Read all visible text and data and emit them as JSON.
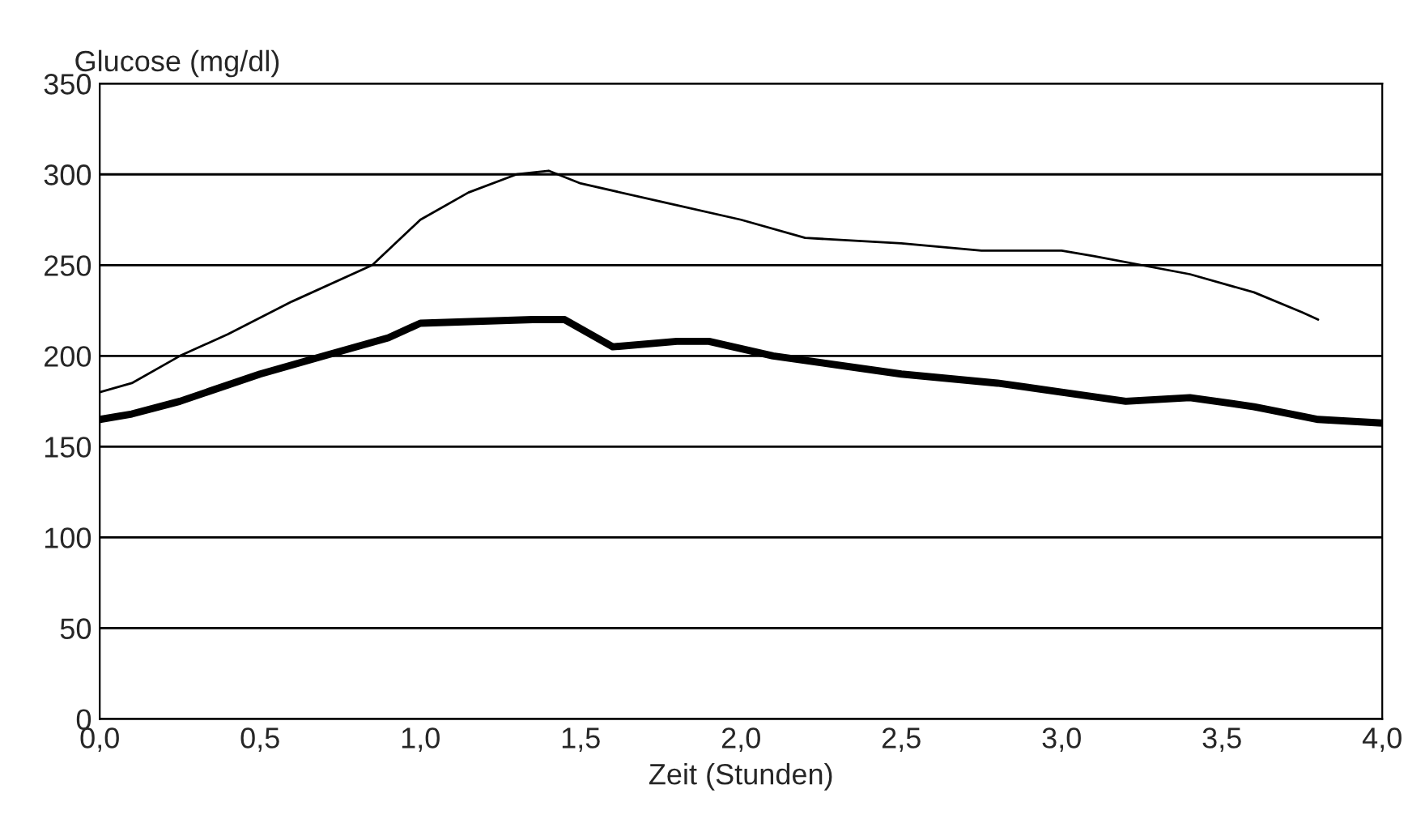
{
  "chart_data": {
    "type": "line",
    "xlabel": "Zeit (Stunden)",
    "ylabel": "Glucose (mg/dl)",
    "xlim": [
      0,
      4
    ],
    "ylim": [
      0,
      350
    ],
    "xticks": [
      {
        "value": 0,
        "label": "0,0"
      },
      {
        "value": 0.5,
        "label": "0,5"
      },
      {
        "value": 1,
        "label": "1,0"
      },
      {
        "value": 1.5,
        "label": "1,5"
      },
      {
        "value": 2,
        "label": "2,0"
      },
      {
        "value": 2.5,
        "label": "2,5"
      },
      {
        "value": 3,
        "label": "3,0"
      },
      {
        "value": 3.5,
        "label": "3,5"
      },
      {
        "value": 4,
        "label": "4,0"
      }
    ],
    "yticks": [
      0,
      50,
      100,
      150,
      200,
      250,
      300,
      350
    ],
    "grid": "y",
    "marker": "none",
    "line_style": "solid",
    "series": [
      {
        "color": "#000000",
        "x": [
          0,
          0.1,
          0.25,
          0.4,
          0.6,
          0.85,
          1.0,
          1.15,
          1.3,
          1.4,
          1.5,
          1.75,
          2.0,
          2.2,
          2.5,
          2.75,
          3.0,
          3.1,
          3.4,
          3.6,
          3.75,
          3.8
        ],
        "values": [
          180,
          185,
          200,
          212,
          230,
          250,
          275,
          290,
          300,
          302,
          295,
          285,
          275,
          265,
          262,
          258,
          258,
          255,
          245,
          235,
          224,
          220
        ]
      },
      {
        "color": "#000000",
        "x": [
          0,
          0.1,
          0.25,
          0.5,
          0.7,
          0.9,
          1.0,
          1.35,
          1.45,
          1.6,
          1.8,
          1.9,
          2.1,
          2.5,
          2.8,
          3.0,
          3.2,
          3.4,
          3.6,
          3.8,
          4.0
        ],
        "values": [
          165,
          168,
          175,
          190,
          200,
          210,
          218,
          220,
          220,
          205,
          208,
          208,
          200,
          190,
          185,
          180,
          175,
          177,
          172,
          165,
          163
        ]
      }
    ]
  }
}
